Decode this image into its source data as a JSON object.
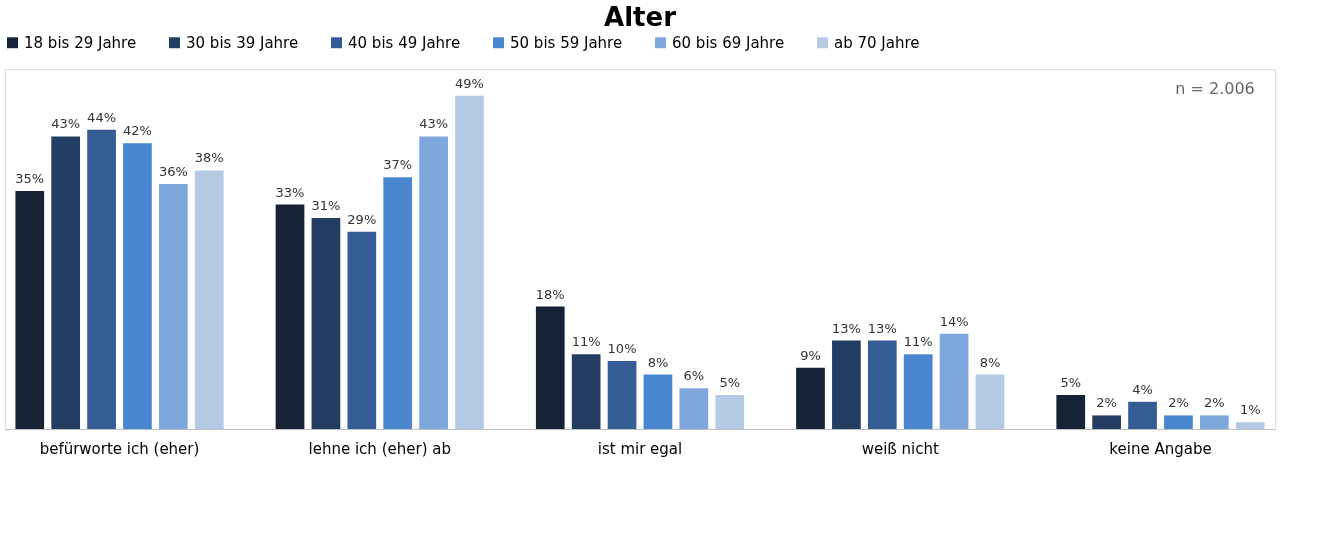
{
  "chart_data": {
    "type": "bar",
    "title": "Alter",
    "categories": [
      "befürworte ich (eher)",
      "lehne ich (eher) ab",
      "ist mir egal",
      "weiß nicht",
      "keine Angabe"
    ],
    "series": [
      {
        "name": "18 bis 29 Jahre",
        "color": "#162236",
        "values": [
          35,
          33,
          18,
          9,
          5
        ],
        "value_labels": [
          "35%",
          "33%",
          "18%",
          "9%",
          "5%"
        ]
      },
      {
        "name": "30 bis 39 Jahre",
        "color": "#243e63",
        "values": [
          43,
          31,
          11,
          13,
          2
        ],
        "value_labels": [
          "43%",
          "31%",
          "11%",
          "13%",
          "2%"
        ]
      },
      {
        "name": "40 bis 49 Jahre",
        "color": "#335d94",
        "values": [
          44,
          29,
          10,
          13,
          4
        ],
        "value_labels": [
          "44%",
          "29%",
          "10%",
          "13%",
          "4%"
        ]
      },
      {
        "name": "50 bis 59 Jahre",
        "color": "#4a86d0",
        "values": [
          42,
          37,
          8,
          11,
          2
        ],
        "value_labels": [
          "42%",
          "37%",
          "8%",
          "11%",
          "2%"
        ]
      },
      {
        "name": "60 bis 69 Jahre",
        "color": "#7da7dd",
        "values": [
          36,
          43,
          6,
          14,
          2
        ],
        "value_labels": [
          "36%",
          "43%",
          "6%",
          "14%",
          "2%"
        ]
      },
      {
        "name": "ab 70 Jahre",
        "color": "#b4c9e4",
        "values": [
          38,
          49,
          5,
          8,
          1
        ],
        "value_labels": [
          "38%",
          "49%",
          "5%",
          "8%",
          "1%"
        ]
      }
    ],
    "annotations": [
      "n = 2.006"
    ],
    "legend": "top",
    "grid": false
  }
}
